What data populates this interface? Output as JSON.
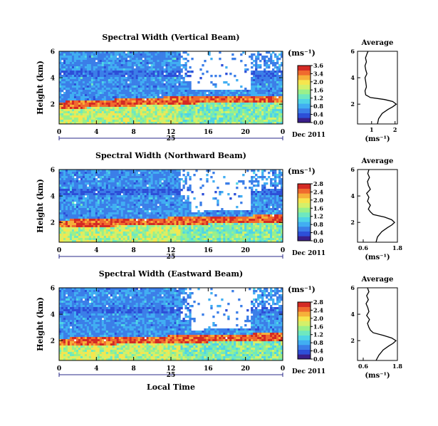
{
  "figure": {
    "xaxis_label": "Local Time",
    "ylabel": "Height (km)",
    "unit_label": "(ms⁻¹)",
    "date_day": "25",
    "date_month_year": "Dec 2011",
    "avg_title": "Average",
    "avg_unit": "(ms⁻¹)",
    "colormap": [
      "#3a1f8a",
      "#2d4fd8",
      "#3b7ee8",
      "#41aef2",
      "#4fd4e6",
      "#6ee8c0",
      "#9af08a",
      "#d4f06a",
      "#f6e54e",
      "#f6b03a",
      "#f06a2e",
      "#d42a24"
    ]
  },
  "chart_data": [
    {
      "type": "heatmap",
      "title": "Spectral Width (Vertical Beam)",
      "x_ticks": [
        "0",
        "4",
        "8",
        "12",
        "16",
        "20",
        "0"
      ],
      "y_ticks": [
        "2",
        "4",
        "6"
      ],
      "x_range_hours": [
        0,
        24
      ],
      "y_range_km": [
        0.5,
        6
      ],
      "colorbar_ticks": [
        "3.6",
        "3.4",
        "2.0",
        "1.6",
        "1.2",
        "0.8",
        "0.4",
        "0.0"
      ],
      "colorbar_range": [
        0,
        3.6
      ],
      "boundary_layer_top_km": [
        1.9,
        2.3,
        2.4
      ],
      "profile": {
        "type": "line",
        "title": "Average",
        "xticks": [
          "1",
          "2"
        ],
        "yticks": [
          "2",
          "4",
          "6"
        ],
        "xlim": [
          0.4,
          2.1
        ],
        "ylim": [
          0.5,
          6
        ],
        "x": [
          1.25,
          1.3,
          1.45,
          1.7,
          1.9,
          2.05,
          1.9,
          1.55,
          0.95,
          0.75,
          0.72,
          0.78,
          0.75,
          0.72,
          0.8,
          0.75,
          0.72,
          0.78,
          0.74,
          0.8,
          0.85
        ],
        "y": [
          0.5,
          0.9,
          1.3,
          1.6,
          1.8,
          2.0,
          2.2,
          2.35,
          2.5,
          2.7,
          3.0,
          3.3,
          3.7,
          4.0,
          4.3,
          4.6,
          4.9,
          5.2,
          5.5,
          5.8,
          6.0
        ]
      }
    },
    {
      "type": "heatmap",
      "title": "Spectral Width (Northward Beam)",
      "x_ticks": [
        "0",
        "4",
        "8",
        "12",
        "16",
        "20",
        "0"
      ],
      "y_ticks": [
        "2",
        "4",
        "6"
      ],
      "x_range_hours": [
        0,
        24
      ],
      "y_range_km": [
        0.5,
        6
      ],
      "colorbar_ticks": [
        "2.8",
        "2.4",
        "2.0",
        "1.6",
        "1.2",
        "0.8",
        "0.4",
        "0.0"
      ],
      "colorbar_range": [
        0,
        2.8
      ],
      "boundary_layer_top_km": [
        1.9,
        2.1,
        2.3
      ],
      "profile": {
        "type": "line",
        "title": "Average",
        "xticks": [
          "0.6",
          "1.8"
        ],
        "yticks": [
          "2",
          "4",
          "6"
        ],
        "xlim": [
          0.4,
          1.8
        ],
        "ylim": [
          0.5,
          6
        ],
        "x": [
          1.05,
          1.1,
          1.25,
          1.45,
          1.6,
          1.7,
          1.6,
          1.35,
          0.95,
          0.85,
          0.78,
          0.85,
          0.75,
          0.8,
          0.72,
          0.85,
          0.78,
          0.75,
          0.82,
          0.76,
          0.8
        ],
        "y": [
          0.5,
          0.9,
          1.3,
          1.6,
          1.8,
          2.0,
          2.2,
          2.4,
          2.6,
          2.8,
          3.0,
          3.3,
          3.6,
          3.9,
          4.2,
          4.5,
          4.8,
          5.1,
          5.4,
          5.7,
          6.0
        ]
      }
    },
    {
      "type": "heatmap",
      "title": "Spectral Width (Eastward Beam)",
      "x_ticks": [
        "0",
        "4",
        "8",
        "12",
        "16",
        "20",
        "0"
      ],
      "y_ticks": [
        "2",
        "4",
        "6"
      ],
      "x_range_hours": [
        0,
        24
      ],
      "y_range_km": [
        0.5,
        6
      ],
      "colorbar_ticks": [
        "2.8",
        "2.4",
        "2.0",
        "1.6",
        "1.2",
        "0.8",
        "0.4",
        "0.0"
      ],
      "colorbar_range": [
        0,
        2.8
      ],
      "boundary_layer_top_km": [
        1.9,
        2.1,
        2.3
      ],
      "profile": {
        "type": "line",
        "title": "Average",
        "xticks": [
          "0.6",
          "1.8"
        ],
        "yticks": [
          "2",
          "4",
          "6"
        ],
        "xlim": [
          0.4,
          1.8
        ],
        "ylim": [
          0.5,
          6
        ],
        "x": [
          1.05,
          1.15,
          1.3,
          1.5,
          1.65,
          1.75,
          1.6,
          1.3,
          0.95,
          0.85,
          0.8,
          0.75,
          0.82,
          0.72,
          0.8,
          0.76,
          0.7,
          0.78,
          0.72,
          0.8,
          0.75
        ],
        "y": [
          0.5,
          0.9,
          1.3,
          1.6,
          1.8,
          2.0,
          2.2,
          2.4,
          2.6,
          2.8,
          3.0,
          3.3,
          3.6,
          3.9,
          4.2,
          4.5,
          4.8,
          5.1,
          5.4,
          5.7,
          6.0
        ]
      }
    }
  ]
}
